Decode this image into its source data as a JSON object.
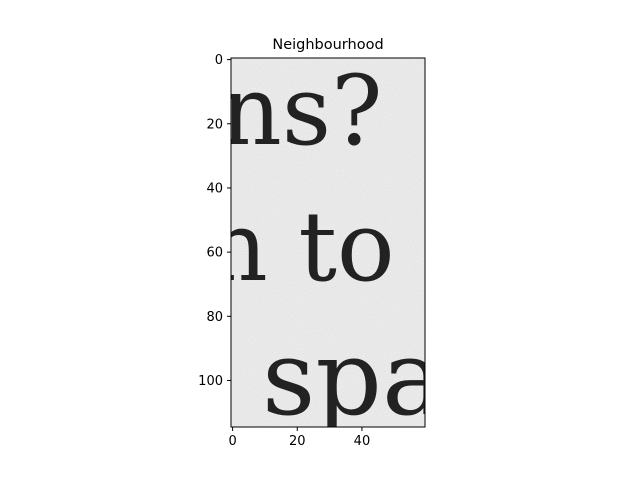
{
  "figure": {
    "title": "Neighbourhood"
  },
  "image_content": {
    "text_lines": [
      "ns?",
      "n to",
      "spa"
    ]
  },
  "chart_data": {
    "type": "heatmap",
    "title": "Neighbourhood",
    "xlabel": "",
    "ylabel": "",
    "xlim": [
      -0.5,
      59.5
    ],
    "ylim": [
      114.5,
      -0.5
    ],
    "x_ticks": [
      0,
      20,
      40
    ],
    "y_ticks": [
      0,
      20,
      40,
      60,
      80,
      100
    ],
    "colormap": "gray",
    "grid": false,
    "colors": {
      "paper": "#f2f2f2",
      "ink": "#1e1e1e",
      "frame": "#000000"
    }
  }
}
